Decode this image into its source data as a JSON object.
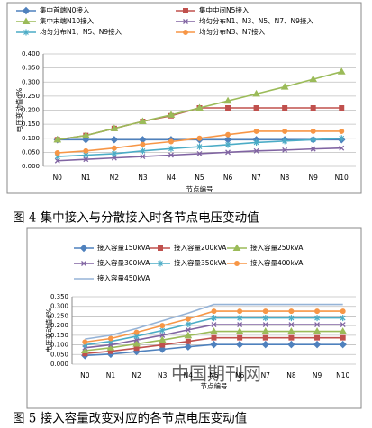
{
  "chart_data": [
    {
      "type": "line",
      "caption": "图 4   集中接入与分散接入时各节点电压变动值",
      "ylabel": "电压变动值d%",
      "xlabel": "节点编号",
      "categories": [
        "N0",
        "N1",
        "N2",
        "N3",
        "N4",
        "N5",
        "N6",
        "N7",
        "N8",
        "N9",
        "N10"
      ],
      "ylim": [
        0,
        0.4
      ],
      "yticks": [
        {
          "value": 0,
          "label": "0.000"
        },
        {
          "value": 0.05,
          "label": "0.050"
        },
        {
          "value": 0.1,
          "label": "0.100"
        },
        {
          "value": 0.15,
          "label": "0.150"
        },
        {
          "value": 0.2,
          "label": "0.200"
        },
        {
          "value": 0.25,
          "label": "0.250"
        },
        {
          "value": 0.3,
          "label": "0.300"
        },
        {
          "value": 0.35,
          "label": "0.350"
        },
        {
          "value": 0.4,
          "label": "0.400"
        }
      ],
      "grid": true,
      "series": [
        {
          "name": "集中首端N0接入",
          "color": "#4f81bd",
          "marker": "diamond",
          "values": [
            0.095,
            0.095,
            0.095,
            0.095,
            0.095,
            0.095,
            0.095,
            0.095,
            0.095,
            0.095,
            0.095
          ]
        },
        {
          "name": "集中中间N5接入",
          "color": "#c0504d",
          "marker": "square",
          "values": [
            0.095,
            0.11,
            0.135,
            0.16,
            0.18,
            0.208,
            0.208,
            0.208,
            0.208,
            0.208,
            0.208
          ]
        },
        {
          "name": "集中末端N10接入",
          "color": "#9bbb59",
          "marker": "triangle",
          "values": [
            0.095,
            0.11,
            0.135,
            0.16,
            0.183,
            0.208,
            0.233,
            0.258,
            0.283,
            0.31,
            0.337
          ]
        },
        {
          "name": "均匀分布N1、N3、N5、N7、N9接入",
          "color": "#8064a2",
          "marker": "x",
          "values": [
            0.02,
            0.025,
            0.03,
            0.035,
            0.04,
            0.045,
            0.05,
            0.055,
            0.058,
            0.062,
            0.065
          ]
        },
        {
          "name": "均匀分布N1、N5、N9接入",
          "color": "#4bacc6",
          "marker": "star",
          "values": [
            0.035,
            0.04,
            0.045,
            0.055,
            0.063,
            0.07,
            0.077,
            0.085,
            0.09,
            0.095,
            0.1
          ]
        },
        {
          "name": "均匀分布N3、N7接入",
          "color": "#f79646",
          "marker": "circle",
          "values": [
            0.048,
            0.055,
            0.065,
            0.078,
            0.088,
            0.1,
            0.113,
            0.125,
            0.125,
            0.125,
            0.125
          ]
        }
      ]
    },
    {
      "type": "line",
      "caption": "图 5   接入容量改变对应的各节点电压变动值",
      "ylabel": "电压变动值d%",
      "xlabel": "节点编号",
      "watermark": "中国期刊网",
      "categories": [
        "N0",
        "N1",
        "N2",
        "N3",
        "N4",
        "N5",
        "N6",
        "N7",
        "N8",
        "N9",
        "N10"
      ],
      "ylim": [
        0,
        0.35
      ],
      "yticks": [
        {
          "value": 0,
          "label": "0.000"
        },
        {
          "value": 0.05,
          "label": "0.050"
        },
        {
          "value": 0.1,
          "label": "0.100"
        },
        {
          "value": 0.15,
          "label": "0.150"
        },
        {
          "value": 0.2,
          "label": "0.200"
        },
        {
          "value": 0.25,
          "label": "0.250"
        },
        {
          "value": 0.3,
          "label": "0.300"
        },
        {
          "value": 0.35,
          "label": "0.350"
        }
      ],
      "grid": true,
      "series": [
        {
          "name": "接入容量150kVA",
          "color": "#4f81bd",
          "marker": "diamond",
          "values": [
            0.045,
            0.052,
            0.065,
            0.077,
            0.09,
            0.102,
            0.102,
            0.102,
            0.102,
            0.102,
            0.102
          ]
        },
        {
          "name": "接入容量200kVA",
          "color": "#c0504d",
          "marker": "square",
          "values": [
            0.055,
            0.067,
            0.083,
            0.1,
            0.118,
            0.137,
            0.137,
            0.137,
            0.137,
            0.137,
            0.137
          ]
        },
        {
          "name": "接入容量250kVA",
          "color": "#9bbb59",
          "marker": "triangle",
          "values": [
            0.07,
            0.085,
            0.105,
            0.125,
            0.148,
            0.17,
            0.17,
            0.17,
            0.17,
            0.17,
            0.17
          ]
        },
        {
          "name": "接入容量300kVA",
          "color": "#8064a2",
          "marker": "x",
          "values": [
            0.085,
            0.1,
            0.125,
            0.15,
            0.178,
            0.205,
            0.205,
            0.205,
            0.205,
            0.205,
            0.205
          ]
        },
        {
          "name": "接入容量350kVA",
          "color": "#4bacc6",
          "marker": "star",
          "values": [
            0.1,
            0.118,
            0.145,
            0.175,
            0.207,
            0.24,
            0.24,
            0.24,
            0.24,
            0.24,
            0.24
          ]
        },
        {
          "name": "接入容量400kVA",
          "color": "#f79646",
          "marker": "circle",
          "values": [
            0.115,
            0.133,
            0.165,
            0.2,
            0.235,
            0.275,
            0.275,
            0.275,
            0.275,
            0.275,
            0.275
          ]
        },
        {
          "name": "接入容量450kVA",
          "color": "#95b3d7",
          "marker": "none",
          "values": [
            0.13,
            0.15,
            0.185,
            0.225,
            0.265,
            0.31,
            0.31,
            0.31,
            0.31,
            0.31,
            0.31
          ]
        }
      ]
    }
  ]
}
